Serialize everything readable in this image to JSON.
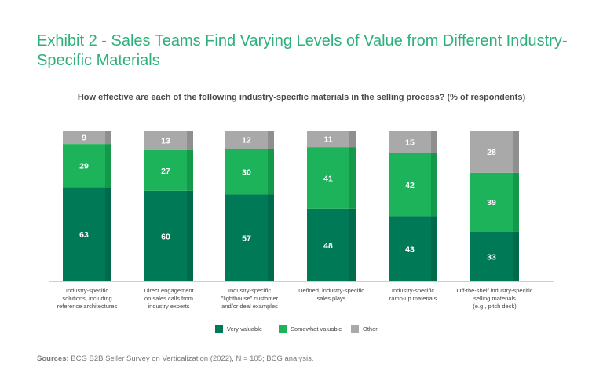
{
  "title": "Exhibit 2 - Sales Teams Find Varying Levels of Value from Different Industry-Specific Materials",
  "subtitle": "How effective are each of the following industry-specific materials in the selling process? (% of respondents)",
  "source_label": "Sources:",
  "source_text": "BCG B2B Seller Survey on Verticalization (2022), N = 105; BCG analysis.",
  "colors": {
    "very": "#007a56",
    "very_side": "#006a4a",
    "somewhat": "#1db35a",
    "somewhat_side": "#14994b",
    "other": "#a9a9a9",
    "other_side": "#8f8f8f"
  },
  "chart_data": {
    "type": "bar",
    "stacked": true,
    "categories": [
      [
        "Industry-specific",
        "solutions, including",
        "reference architectures"
      ],
      [
        "Direct engagement",
        "on sales calls from",
        "industry experts"
      ],
      [
        "Industry-specific",
        "\"lighthouse\" customer",
        "and/or deal examples"
      ],
      [
        "Defined, industry-specific",
        "sales plays"
      ],
      [
        "Industry-specific",
        "ramp-up materials"
      ],
      [
        "Off-the-shelf industry-specific",
        "selling materials",
        "(e.g., pitch deck)"
      ]
    ],
    "series": [
      {
        "name": "Very valuable",
        "values": [
          63,
          60,
          57,
          48,
          43,
          33
        ]
      },
      {
        "name": "Somewhat valuable",
        "values": [
          29,
          27,
          30,
          41,
          42,
          39
        ]
      },
      {
        "name": "Other",
        "values": [
          9,
          13,
          12,
          11,
          15,
          28
        ]
      }
    ],
    "legend_position": "bottom-center"
  }
}
